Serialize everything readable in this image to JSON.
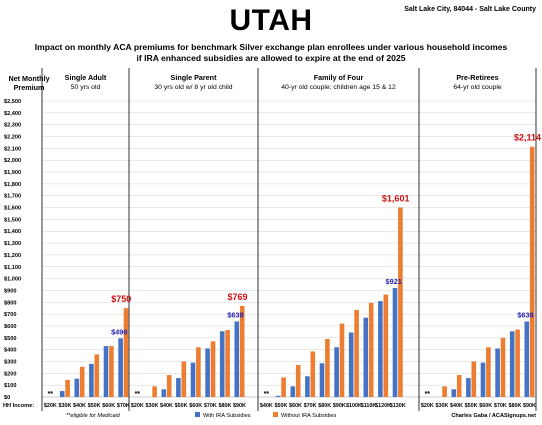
{
  "title": "UTAH",
  "location": "Salt Lake City, 84044 - Salt Lake County",
  "subtitle_line1": "Impact on monthly ACA premiums for benchmark Silver exchange plan enrollees under various household incomes",
  "subtitle_line2": "if IRA enhanced subsidies are allowed to expire at the end of 2025",
  "y_title_line1": "Net Monthly",
  "y_title_line2": "Premium",
  "hh_income_label": "HH Income:",
  "medicaid_note": "**eligible for Medicaid",
  "credit": "Charles Gaba / ACASignups.net",
  "colors": {
    "with_ira": "#4472C4",
    "without_ira": "#ED7D31",
    "with_label": "#1F1FB4",
    "without_label": "#CC1111",
    "grid": "#d0d0d0"
  },
  "chart_data": {
    "type": "bar",
    "ylim": [
      0,
      2500
    ],
    "y_ticks": [
      "$0",
      "$100",
      "$200",
      "$300",
      "$400",
      "$500",
      "$600",
      "$700",
      "$800",
      "$900",
      "$1,000",
      "$1,100",
      "$1,200",
      "$1,300",
      "$1,400",
      "$1,500",
      "$1,600",
      "$1,700",
      "$1,800",
      "$1,900",
      "$2,000",
      "$2,100",
      "$2,200",
      "$2,300",
      "$2,400",
      "$2,500"
    ],
    "grid": true,
    "legend_position": "bottom",
    "series_names": [
      "With IRA Subsidies",
      "Without IRA Subsidies"
    ],
    "groups": [
      {
        "heading1": "Single Adult",
        "heading2": "50 yrs old",
        "categories": [
          "$20K",
          "$30K",
          "$40K",
          "$50K",
          "$60K",
          "$70K"
        ],
        "with_ira": [
          0,
          50,
          155,
          280,
          430,
          496
        ],
        "without_ira": [
          0,
          145,
          255,
          360,
          430,
          750
        ],
        "medicaid": [
          true,
          false,
          false,
          false,
          false,
          false
        ],
        "with_label": "$496",
        "without_label": "$750"
      },
      {
        "heading1": "Single Parent",
        "heading2": "30 yrs old w/ 8 yr old child",
        "categories": [
          "$20K",
          "$30K",
          "$40K",
          "$50K",
          "$60K",
          "$70K",
          "$80K",
          "$90K"
        ],
        "with_ira": [
          0,
          0,
          65,
          160,
          290,
          410,
          555,
          638
        ],
        "without_ira": [
          0,
          90,
          185,
          300,
          420,
          470,
          565,
          769
        ],
        "medicaid": [
          true,
          false,
          false,
          false,
          false,
          false,
          false,
          false
        ],
        "with_label": "$638",
        "without_label": "$769"
      },
      {
        "heading1": "Family of Four",
        "heading2": "40-yr old couple; children age 15 & 12",
        "categories": [
          "$40K",
          "$50K",
          "$60K",
          "$70K",
          "$80K",
          "$90K",
          "$100K",
          "$110K",
          "$120K",
          "$130K"
        ],
        "with_ira": [
          0,
          10,
          90,
          175,
          285,
          420,
          545,
          670,
          810,
          921
        ],
        "without_ira": [
          0,
          165,
          270,
          385,
          490,
          620,
          735,
          795,
          865,
          1601
        ],
        "medicaid": [
          true,
          false,
          false,
          false,
          false,
          false,
          false,
          false,
          false,
          false
        ],
        "with_label": "$921",
        "without_label": "$1,601"
      },
      {
        "heading1": "Pre-Retirees",
        "heading2": "64-yr old couple",
        "categories": [
          "$20K",
          "$30K",
          "$40K",
          "$50K",
          "$60K",
          "$70K",
          "$80K",
          "$90K"
        ],
        "with_ira": [
          0,
          0,
          65,
          160,
          290,
          410,
          555,
          638
        ],
        "without_ira": [
          0,
          90,
          185,
          300,
          420,
          500,
          570,
          2114
        ],
        "medicaid": [
          true,
          false,
          false,
          false,
          false,
          false,
          false,
          false
        ],
        "with_label": "$638",
        "without_label": "$2,114"
      }
    ]
  }
}
